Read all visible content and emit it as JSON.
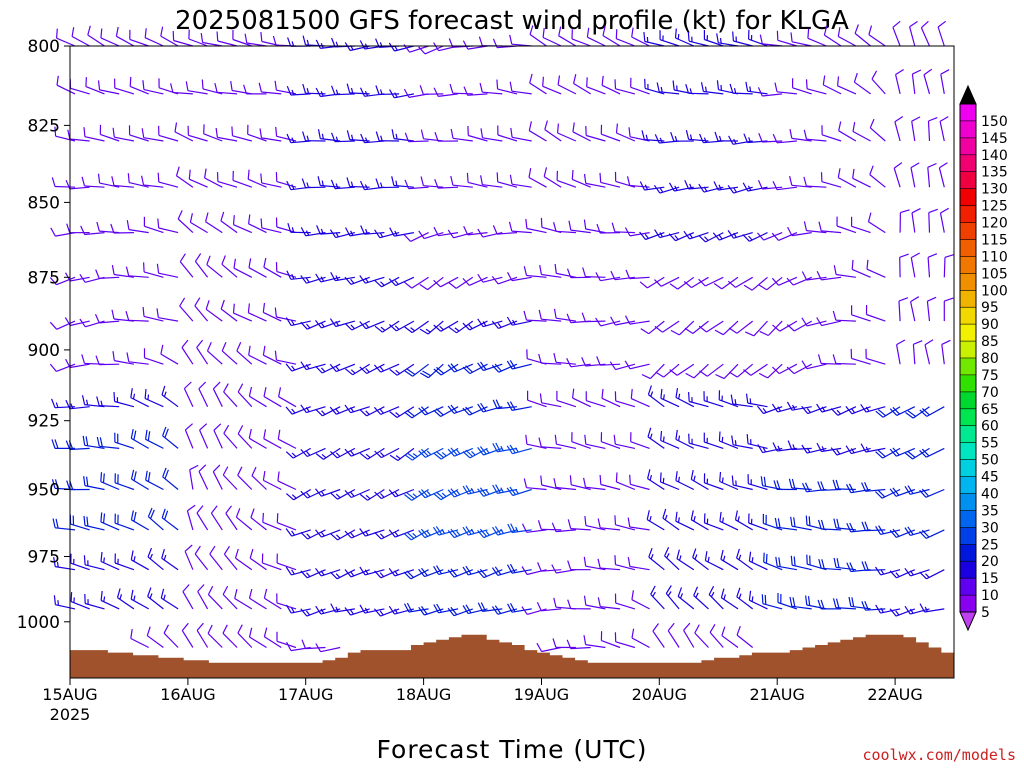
{
  "chart_data": {
    "type": "wind-barb-profile",
    "title": "2025081500 GFS forecast wind profile (kt) for KLGA",
    "xlabel": "Forecast Time (UTC)",
    "ylabel": "",
    "x_tick_labels": [
      "15AUG",
      "16AUG",
      "17AUG",
      "18AUG",
      "19AUG",
      "20AUG",
      "21AUG",
      "22AUG"
    ],
    "x_year_label": "2025",
    "x_range_hours": [
      0,
      180
    ],
    "x_step_hours": 3,
    "y_tick_labels": [
      "800",
      "825",
      "850",
      "875",
      "900",
      "925",
      "950",
      "975",
      "1000"
    ],
    "y_range_hPa": [
      800,
      1022
    ],
    "y_scale": "log-pressure",
    "levels_hPa": [
      800,
      815,
      830,
      845,
      860,
      875,
      890,
      905,
      920,
      935,
      950,
      965,
      980,
      995,
      1010
    ],
    "colorbar": {
      "labels": [
        "5",
        "10",
        "15",
        "20",
        "25",
        "30",
        "35",
        "40",
        "45",
        "50",
        "55",
        "60",
        "65",
        "70",
        "75",
        "80",
        "85",
        "90",
        "95",
        "100",
        "105",
        "110",
        "115",
        "120",
        "125",
        "130",
        "135",
        "140",
        "145",
        "150"
      ],
      "colors": [
        "#8a00f0",
        "#6000f0",
        "#1a00e0",
        "#0018dc",
        "#0040e8",
        "#0066f0",
        "#0090f0",
        "#00b4f0",
        "#00d0e0",
        "#00e6c0",
        "#00e890",
        "#00e650",
        "#00d830",
        "#30e000",
        "#70e800",
        "#c8f000",
        "#f0f000",
        "#f0d800",
        "#f0b400",
        "#f09000",
        "#f07800",
        "#f06000",
        "#f04000",
        "#f02000",
        "#f00000",
        "#f00040",
        "#f00070",
        "#f000a0",
        "#f000d0",
        "#f000f0"
      ],
      "position": "right"
    },
    "terrain": {
      "color": "#a0522d",
      "pressure_hPa": [
        1011,
        1011,
        1011,
        1012,
        1012,
        1013,
        1013,
        1014,
        1014,
        1015,
        1015,
        1016,
        1016,
        1016,
        1016,
        1016,
        1016,
        1016,
        1016,
        1016,
        1015,
        1014,
        1012,
        1011,
        1011,
        1011,
        1011,
        1009,
        1008,
        1007,
        1006,
        1005,
        1005,
        1007,
        1008,
        1009,
        1011,
        1012,
        1013,
        1014,
        1015,
        1016,
        1016,
        1016,
        1016,
        1016,
        1016,
        1016,
        1016,
        1016,
        1015,
        1014,
        1014,
        1013,
        1012,
        1012,
        1012,
        1011,
        1010,
        1009,
        1008,
        1007,
        1006,
        1005,
        1005,
        1005,
        1006,
        1008,
        1010,
        1012
      ]
    },
    "barb_direction_deg_by_day": [
      [
        300,
        290,
        280,
        270,
        260,
        250,
        250,
        255,
        260,
        265,
        270,
        275,
        280,
        285,
        285
      ],
      [
        290,
        280,
        290,
        300,
        310,
        320,
        320,
        330,
        340,
        345,
        345,
        340,
        335,
        330,
        330
      ],
      [
        270,
        270,
        270,
        270,
        265,
        260,
        255,
        250,
        250,
        245,
        245,
        245,
        250,
        255,
        260
      ],
      [
        250,
        260,
        270,
        270,
        250,
        230,
        230,
        230,
        235,
        235,
        240,
        245,
        250,
        255,
        260
      ],
      [
        300,
        300,
        300,
        300,
        285,
        280,
        280,
        280,
        285,
        280,
        275,
        265,
        260,
        260,
        255
      ],
      [
        290,
        280,
        270,
        260,
        250,
        240,
        235,
        230,
        300,
        300,
        300,
        300,
        310,
        320,
        330
      ],
      [
        280,
        270,
        260,
        260,
        245,
        230,
        225,
        230,
        255,
        265,
        275,
        285,
        290,
        285,
        280
      ],
      [
        340,
        350,
        350,
        350,
        355,
        355,
        355,
        350,
        240,
        245,
        250,
        250,
        250,
        255,
        260
      ]
    ],
    "barb_speed_kt_by_day": [
      [
        10,
        10,
        10,
        10,
        10,
        10,
        10,
        10,
        15,
        20,
        20,
        20,
        15,
        15,
        10
      ],
      [
        10,
        10,
        10,
        10,
        10,
        10,
        10,
        10,
        10,
        10,
        10,
        10,
        10,
        10,
        10
      ],
      [
        15,
        15,
        15,
        15,
        15,
        15,
        15,
        15,
        15,
        15,
        15,
        15,
        15,
        15,
        10
      ],
      [
        10,
        10,
        10,
        10,
        10,
        10,
        15,
        20,
        20,
        25,
        25,
        25,
        20,
        20,
        15
      ],
      [
        10,
        10,
        10,
        10,
        10,
        10,
        10,
        10,
        10,
        10,
        10,
        10,
        10,
        10,
        10
      ],
      [
        15,
        15,
        15,
        15,
        15,
        10,
        10,
        10,
        15,
        15,
        15,
        15,
        15,
        15,
        10
      ],
      [
        10,
        10,
        10,
        10,
        10,
        10,
        10,
        10,
        15,
        15,
        20,
        20,
        20,
        20,
        15
      ],
      [
        10,
        10,
        10,
        10,
        10,
        10,
        10,
        10,
        20,
        20,
        20,
        20,
        15,
        15,
        10
      ]
    ],
    "grid": false,
    "legend": "none"
  },
  "footer": {
    "credit": "coolwx.com/models"
  }
}
